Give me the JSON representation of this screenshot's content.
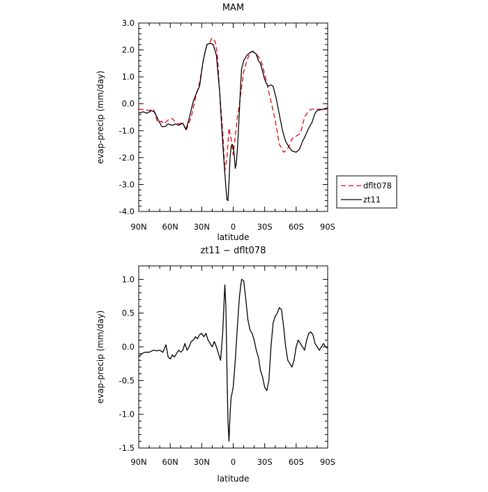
{
  "chart_data": [
    {
      "type": "line",
      "title": "MAM",
      "xlabel": "latitude",
      "ylabel": "evap-precip (mm/day)",
      "xlim": [
        90,
        -90
      ],
      "ylim": [
        -4.0,
        3.0
      ],
      "x_ticks": [
        90,
        60,
        30,
        0,
        -30,
        -60,
        -90
      ],
      "x_tick_labels": [
        "90N",
        "60N",
        "30N",
        "0",
        "30S",
        "60S",
        "90S"
      ],
      "y_ticks": [
        -4.0,
        -3.0,
        -2.0,
        -1.0,
        0.0,
        1.0,
        2.0,
        3.0
      ],
      "y_tick_labels": [
        "-4.0",
        "-3.0",
        "-2.0",
        "-1.0",
        "0.0",
        "1.0",
        "2.0",
        "3.0"
      ],
      "grid": false,
      "legend": {
        "placement": "outside-right"
      },
      "series": [
        {
          "name": "dflt078",
          "color": "#e8000b",
          "dash": "dashed",
          "x": [
            90,
            85,
            80,
            76,
            72,
            68,
            66,
            62,
            58,
            55,
            52,
            48,
            45,
            40,
            36,
            32,
            28,
            25,
            22,
            20,
            17,
            15,
            13,
            10,
            8,
            6,
            4,
            2,
            0,
            -2,
            -4,
            -6,
            -8,
            -10,
            -13,
            -16,
            -18,
            -20,
            -23,
            -26,
            -28,
            -30,
            -33,
            -36,
            -40,
            -44,
            -48,
            -50,
            -53,
            -56,
            -60,
            -64,
            -68,
            -72,
            -75,
            -78,
            -82,
            -86,
            -90
          ],
          "y": [
            -0.2,
            -0.22,
            -0.25,
            -0.2,
            -0.7,
            -0.65,
            -0.75,
            -0.6,
            -0.55,
            -0.68,
            -0.75,
            -0.7,
            -1.0,
            -0.5,
            0.2,
            0.8,
            1.7,
            2.2,
            2.3,
            2.45,
            2.3,
            1.8,
            0.5,
            -1.0,
            -2.5,
            -2.0,
            -0.9,
            -1.3,
            -1.9,
            -1.2,
            -0.5,
            0.0,
            0.6,
            1.2,
            1.6,
            1.9,
            1.95,
            1.9,
            1.8,
            1.65,
            1.4,
            1.1,
            0.6,
            0.1,
            -0.6,
            -1.5,
            -1.8,
            -1.75,
            -1.6,
            -1.3,
            -1.2,
            -1.1,
            -0.5,
            -0.25,
            -0.2,
            -0.2,
            -0.2,
            -0.22,
            -0.2
          ]
        },
        {
          "name": "zt11",
          "color": "#000000",
          "dash": "solid",
          "x": [
            90,
            86,
            82,
            78,
            75,
            72,
            68,
            65,
            62,
            58,
            55,
            52,
            48,
            45,
            42,
            38,
            35,
            32,
            29,
            27,
            25,
            22,
            19,
            16,
            13,
            11,
            9,
            7,
            6,
            5,
            4,
            3,
            2,
            1,
            0,
            -1,
            -2,
            -3,
            -4,
            -5,
            -6,
            -7,
            -8,
            -10,
            -13,
            -16,
            -19,
            -20,
            -22,
            -24,
            -26,
            -28,
            -30,
            -33,
            -36,
            -38,
            -41,
            -44,
            -47,
            -50,
            -53,
            -56,
            -60,
            -63,
            -66,
            -68,
            -72,
            -75,
            -78,
            -80,
            -83,
            -86,
            -90
          ],
          "y": [
            -0.35,
            -0.3,
            -0.35,
            -0.25,
            -0.3,
            -0.55,
            -0.85,
            -0.85,
            -0.75,
            -0.8,
            -0.75,
            -0.8,
            -0.72,
            -0.95,
            -0.55,
            0.1,
            0.4,
            0.65,
            1.5,
            1.9,
            2.2,
            2.25,
            2.2,
            1.8,
            0.5,
            -0.8,
            -2.0,
            -3.1,
            -3.55,
            -3.6,
            -2.9,
            -2.0,
            -1.6,
            -1.5,
            -1.6,
            -1.9,
            -2.4,
            -2.2,
            -1.7,
            -1.0,
            -0.2,
            0.6,
            1.3,
            1.6,
            1.8,
            1.9,
            1.95,
            1.9,
            1.85,
            1.6,
            1.5,
            1.2,
            0.9,
            0.65,
            0.7,
            0.65,
            0.2,
            -0.4,
            -1.0,
            -1.4,
            -1.6,
            -1.75,
            -1.8,
            -1.7,
            -1.4,
            -1.25,
            -0.9,
            -0.7,
            -0.35,
            -0.25,
            -0.22,
            -0.2,
            -0.15
          ]
        }
      ]
    },
    {
      "type": "line",
      "title": "zt11 − dflt078",
      "xlabel": "latitude",
      "ylabel": "evap-precip (mm/day)",
      "xlim": [
        90,
        -90
      ],
      "ylim": [
        -1.5,
        1.2
      ],
      "x_ticks": [
        90,
        60,
        30,
        0,
        -30,
        -60,
        -90
      ],
      "x_tick_labels": [
        "90N",
        "60N",
        "30N",
        "0",
        "30S",
        "60S",
        "90S"
      ],
      "y_ticks": [
        -1.5,
        -1.0,
        -0.5,
        0.0,
        0.5,
        1.0
      ],
      "y_tick_labels": [
        "-1.5",
        "-1.0",
        "-0.5",
        "0.0",
        "0.5",
        "1.0"
      ],
      "grid": false,
      "series": [
        {
          "color": "#000000",
          "x": [
            90,
            87,
            84,
            80,
            76,
            73,
            70,
            67,
            64,
            62,
            60,
            58,
            56,
            54,
            52,
            50,
            48,
            46,
            44,
            42,
            40,
            38,
            36,
            34,
            32,
            30,
            28,
            26,
            24,
            22,
            20,
            18,
            16,
            14,
            12,
            10,
            8,
            7,
            6,
            5,
            4,
            3,
            2,
            1,
            0,
            -2,
            -4,
            -6,
            -8,
            -10,
            -12,
            -14,
            -16,
            -18,
            -20,
            -22,
            -24,
            -26,
            -28,
            -30,
            -32,
            -34,
            -36,
            -38,
            -40,
            -42,
            -44,
            -46,
            -48,
            -50,
            -52,
            -54,
            -56,
            -58,
            -60,
            -62,
            -64,
            -66,
            -68,
            -70,
            -72,
            -74,
            -76,
            -78,
            -80,
            -82,
            -84,
            -86,
            -88,
            -90
          ],
          "y": [
            -0.15,
            -0.1,
            -0.08,
            -0.08,
            -0.05,
            -0.06,
            -0.05,
            -0.08,
            0.03,
            -0.15,
            -0.18,
            -0.12,
            -0.15,
            -0.1,
            -0.05,
            -0.08,
            -0.05,
            0.05,
            -0.05,
            0.0,
            0.08,
            0.1,
            0.15,
            0.12,
            0.18,
            0.2,
            0.15,
            0.2,
            0.1,
            0.05,
            0.0,
            0.08,
            0.0,
            -0.1,
            -0.2,
            0.2,
            0.92,
            0.6,
            -0.3,
            -1.1,
            -1.4,
            -1.0,
            -0.75,
            -0.68,
            -0.6,
            -0.2,
            0.3,
            0.75,
            1.0,
            0.98,
            0.7,
            0.4,
            0.25,
            0.2,
            0.1,
            -0.05,
            -0.15,
            -0.35,
            -0.45,
            -0.6,
            -0.65,
            -0.5,
            0.0,
            0.35,
            0.45,
            0.5,
            0.58,
            0.55,
            0.3,
            0.0,
            -0.2,
            -0.25,
            -0.3,
            -0.2,
            0.0,
            0.1,
            0.05,
            0.0,
            -0.05,
            0.1,
            0.2,
            0.22,
            0.18,
            0.05,
            0.0,
            -0.05,
            0.0,
            0.05,
            0.0,
            -0.02
          ]
        }
      ]
    }
  ]
}
